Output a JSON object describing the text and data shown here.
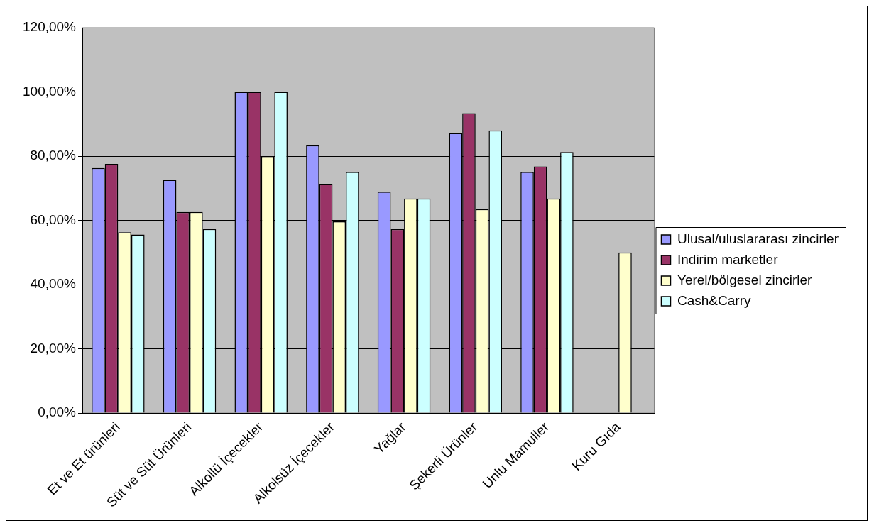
{
  "chart_data": {
    "type": "bar",
    "categories": [
      "Et ve Et ürünleri",
      "Süt ve Süt Ürünleri",
      "Alkollü İçecekler",
      "Alkolsüz İçecekler",
      "Yağlar",
      "Şekerli Ürünler",
      "Unlu Mamuller",
      "Kuru Gıda"
    ],
    "series": [
      {
        "name": "Ulusal/uluslararası zincirler",
        "color": "#9999ff",
        "values": [
          76.3,
          72.6,
          100,
          83.4,
          68.9,
          87.2,
          75.1,
          null
        ]
      },
      {
        "name": "Indirim marketler",
        "color": "#993366",
        "values": [
          77.6,
          62.6,
          100,
          71.4,
          57.3,
          93.4,
          76.8,
          null
        ]
      },
      {
        "name": "Yerel/bölgesel zincirler",
        "color": "#ffffcc",
        "values": [
          56.3,
          62.6,
          80,
          59.7,
          66.8,
          63.5,
          66.8,
          50
        ]
      },
      {
        "name": "Cash&Carry",
        "color": "#ccffff",
        "values": [
          55.6,
          57.3,
          100,
          75.1,
          66.8,
          88,
          81.3,
          null
        ]
      }
    ],
    "ylim": [
      0,
      120
    ],
    "yticks": [
      {
        "value": 0,
        "label": "0,00%"
      },
      {
        "value": 20,
        "label": "20,00%"
      },
      {
        "value": 40,
        "label": "40,00%"
      },
      {
        "value": 60,
        "label": "60,00%"
      },
      {
        "value": 80,
        "label": "80,00%"
      },
      {
        "value": 100,
        "label": "100,00%"
      },
      {
        "value": 120,
        "label": "120,00%"
      }
    ],
    "grid": "y",
    "legend": "right"
  }
}
